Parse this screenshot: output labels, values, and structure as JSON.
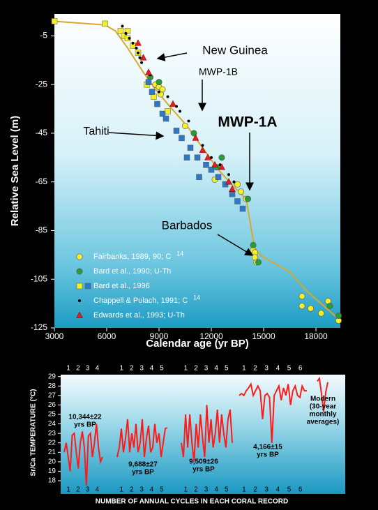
{
  "chart_data": [
    {
      "type": "scatter",
      "x_label": "Calendar age  (yr BP)",
      "y_label": "Relative Sea Level  (m)",
      "xlim": [
        3000,
        19400
      ],
      "ylim": [
        -125,
        4
      ],
      "xticks": [
        3000,
        6000,
        9000,
        12000,
        15000,
        18000
      ],
      "yticks": [
        -5,
        -25,
        -45,
        -65,
        -85,
        -105,
        -125
      ],
      "curve": {
        "color": "#d9a82a",
        "x": [
          3000,
          5900,
          6500,
          7200,
          8100,
          8800,
          9500,
          10600,
          11500,
          12400,
          13300,
          14000,
          14500,
          15000,
          16500,
          17500,
          19400
        ],
        "y": [
          1,
          -0.5,
          -3,
          -10,
          -20,
          -27,
          -33,
          -42,
          -51,
          -60,
          -67,
          -72,
          -93,
          -96,
          -102,
          -110,
          -122
        ]
      },
      "series": [
        {
          "name": "Fairbanks, 1989, 90; C",
          "name_sup": "14",
          "marker": "circle",
          "color": "#f5ee2a",
          "x": [
            8800,
            9000,
            9200,
            9100,
            10500,
            12200,
            13500,
            13700,
            14000,
            14400,
            14500,
            14500,
            14600,
            17200,
            17200,
            17700,
            18300,
            18700,
            19300
          ],
          "y": [
            -25,
            -26,
            -27,
            -29,
            -42,
            -64,
            -66,
            -69,
            -72,
            -93,
            -94,
            -96,
            -98,
            -112,
            -116,
            -117,
            -119,
            -114,
            -122
          ]
        },
        {
          "name": "Bard et al., 1990; U-Th",
          "marker": "circle",
          "color": "#2a9a3a",
          "x": [
            8500,
            9000,
            11000,
            12300,
            12600,
            14100,
            14400,
            14700,
            18800,
            19300
          ],
          "y": [
            -22,
            -24,
            -45,
            -59,
            -55,
            -72,
            -91,
            -98,
            -116,
            -120
          ]
        },
        {
          "name": "Bard et al., 1996",
          "marker": "square",
          "groups": [
            {
              "color": "#f5ee2a",
              "x": [
                3000,
                5900,
                6800,
                7000,
                7200,
                7200,
                7500,
                7800,
                8300,
                8700,
                9500
              ],
              "y": [
                1,
                0,
                -3,
                -5,
                -3,
                -6,
                -9,
                -12,
                -25,
                -30,
                -36
              ]
            },
            {
              "color": "#2f78c4",
              "x": [
                8400,
                8600,
                8900,
                9200,
                9400,
                10000,
                10300,
                10600,
                10800,
                11200,
                11300,
                11700,
                12000,
                12400,
                12800,
                13200,
                13500,
                13800
              ],
              "y": [
                -24,
                -28,
                -33,
                -37,
                -39,
                -44,
                -47,
                -55,
                -51,
                -55,
                -63,
                -58,
                -60,
                -63,
                -66,
                -70,
                -73,
                -76
              ]
            }
          ]
        },
        {
          "name": "Chappell & Polach, 1991; C",
          "name_sup": "14",
          "marker": "dot",
          "color": "#000000",
          "x": [
            6900,
            7100,
            7300,
            7500,
            7700,
            7800,
            7900,
            8000,
            8500,
            9000,
            9500,
            10000,
            10200,
            10700,
            11500,
            12000,
            12500,
            13000,
            13300
          ],
          "y": [
            -1,
            -4,
            -6,
            -8,
            -10,
            -12,
            -14,
            -16,
            -21,
            -28,
            -30,
            -34,
            -36,
            -40,
            -50,
            -55,
            -58,
            -62,
            -65
          ]
        },
        {
          "name": "Edwards et al., 1993; U-Th",
          "marker": "triangle",
          "color": "#e02020",
          "x": [
            7800,
            8100,
            8400,
            9800,
            11100,
            11500,
            11800,
            12200,
            12600,
            13000,
            13200
          ],
          "y": [
            -8,
            -14,
            -20,
            -33,
            -47,
            -52,
            -55,
            -58,
            -59,
            -65,
            -68
          ]
        }
      ],
      "annotations": [
        "New Guinea",
        "MWP-1B",
        "MWP-1A",
        "Tahiti",
        "Barbados"
      ]
    },
    {
      "type": "line",
      "y_label": "Sr/Ca TEMPERATURE (°C)",
      "x_label": "NUMBER OF ANNUAL CYCLES IN EACH CORAL RECORD",
      "ylim": [
        16.6,
        29.2
      ],
      "yticks": [
        18,
        19,
        20,
        21,
        22,
        23,
        24,
        25,
        26,
        27,
        28,
        29
      ],
      "color": "#ff1a1a",
      "records": [
        {
          "label": [
            "10,344±22",
            "yrs BP"
          ],
          "cycles": [
            1,
            2,
            3,
            4
          ],
          "values": [
            21,
            22,
            20.5,
            19,
            22.8,
            23,
            21,
            19.3,
            22,
            23.2,
            21.5,
            17.5,
            22.7,
            23,
            20.5,
            22,
            24,
            21.5,
            20,
            20.5
          ]
        },
        {
          "label": [
            "9,688±27",
            "yrs BP"
          ],
          "cycles": [
            1,
            2,
            3,
            4,
            5
          ],
          "values": [
            20.5,
            21.5,
            23.5,
            21,
            22.5,
            24.5,
            21,
            23,
            21.5,
            24,
            21,
            22,
            24.5,
            20.5,
            22.5,
            23.8,
            21,
            21.5,
            24,
            22,
            23,
            20.5,
            22,
            23.5,
            23.6
          ]
        },
        {
          "label": [
            "9,509±26",
            "yrs BP"
          ],
          "cycles": [
            1,
            2,
            3,
            4,
            5
          ],
          "values": [
            22,
            20.5,
            25,
            21.5,
            25,
            22,
            20,
            24,
            21.5,
            25,
            22.5,
            20.5,
            26,
            22,
            24.5,
            21.5,
            23,
            25.5,
            22,
            25,
            23,
            21.5,
            24.5,
            25.5,
            22
          ]
        },
        {
          "label": [
            "4,166±15",
            "yrs BP"
          ],
          "cycles": [
            1,
            2,
            3,
            4,
            5,
            6
          ],
          "values": [
            27,
            27.2,
            27,
            27.5,
            27.8,
            28.2,
            27,
            27.5,
            28,
            27.5,
            24.5,
            27,
            27.2,
            26.8,
            22,
            27,
            27.5,
            28,
            26.5,
            27.8,
            27,
            28.2,
            26,
            27.5,
            28,
            27,
            26.8,
            28,
            27.5,
            27.5
          ]
        },
        {
          "label": [
            "Modern",
            "(30-year",
            "monthly",
            "averages)"
          ],
          "values": [
            28.5,
            28.8,
            27.2,
            25.3,
            27.3,
            28.4
          ]
        }
      ]
    }
  ]
}
